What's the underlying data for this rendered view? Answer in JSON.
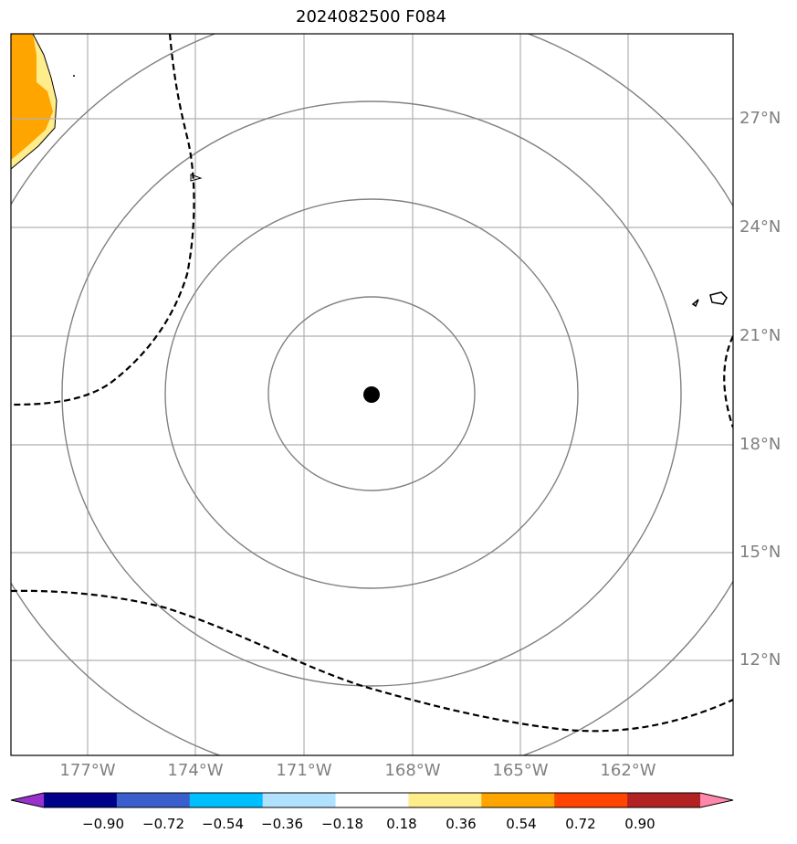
{
  "title": "2024082500 F084",
  "map": {
    "lat_labels": [
      "27°N",
      "24°N",
      "21°N",
      "18°N",
      "15°N",
      "12°N"
    ],
    "lon_labels": [
      "177°W",
      "174°W",
      "171°W",
      "168°W",
      "165°W",
      "162°W"
    ],
    "storm_center": {
      "lon": "169.3°W",
      "lat": "19.4°N"
    },
    "range_rings_count": 4,
    "contour_style": "dashed black",
    "gridline_color": "#b0b0b0",
    "ring_color": "#808080"
  },
  "colorbar": {
    "tick_labels": [
      "−0.90",
      "−0.72",
      "−0.54",
      "−0.36",
      "−0.18",
      "0.18",
      "0.36",
      "0.54",
      "0.72",
      "0.90"
    ],
    "colors": [
      "#9932cc",
      "#00008b",
      "#3a5fcd",
      "#00bfff",
      "#b0e2ff",
      "#ffffff",
      "#ffec8b",
      "#ffa500",
      "#ff4500",
      "#b22222",
      "#ff88aa"
    ],
    "extend": "both"
  }
}
